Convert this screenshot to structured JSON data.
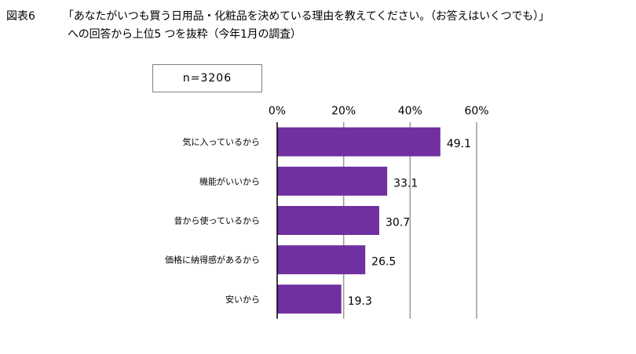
{
  "figure": {
    "label": "図表6",
    "title_line1": "「あなたがいつも買う日用品・化粧品を決めている理由を教えてください。（お答えはいくつでも）」",
    "title_line2": "への回答から上位5 つを抜粋（今年1月の調査）"
  },
  "sample_size": "n=3206",
  "chart_data": {
    "type": "bar",
    "orientation": "horizontal",
    "categories": [
      "気に入っているから",
      "機能がいいから",
      "昔から使っているから",
      "価格に納得感があるから",
      "安いから"
    ],
    "values": [
      49.1,
      33.1,
      30.7,
      26.5,
      19.3
    ],
    "value_labels": [
      "49.1",
      "33.1",
      "30.7",
      "26.5",
      "19.3"
    ],
    "xlim": [
      0,
      60
    ],
    "ticks": [
      0,
      20,
      40,
      60
    ],
    "tick_labels": [
      "0%",
      "20%",
      "40%",
      "60%"
    ],
    "axis_position": "top",
    "grid": true,
    "bar_color": "#7030a0",
    "grid_color": "#999999"
  }
}
